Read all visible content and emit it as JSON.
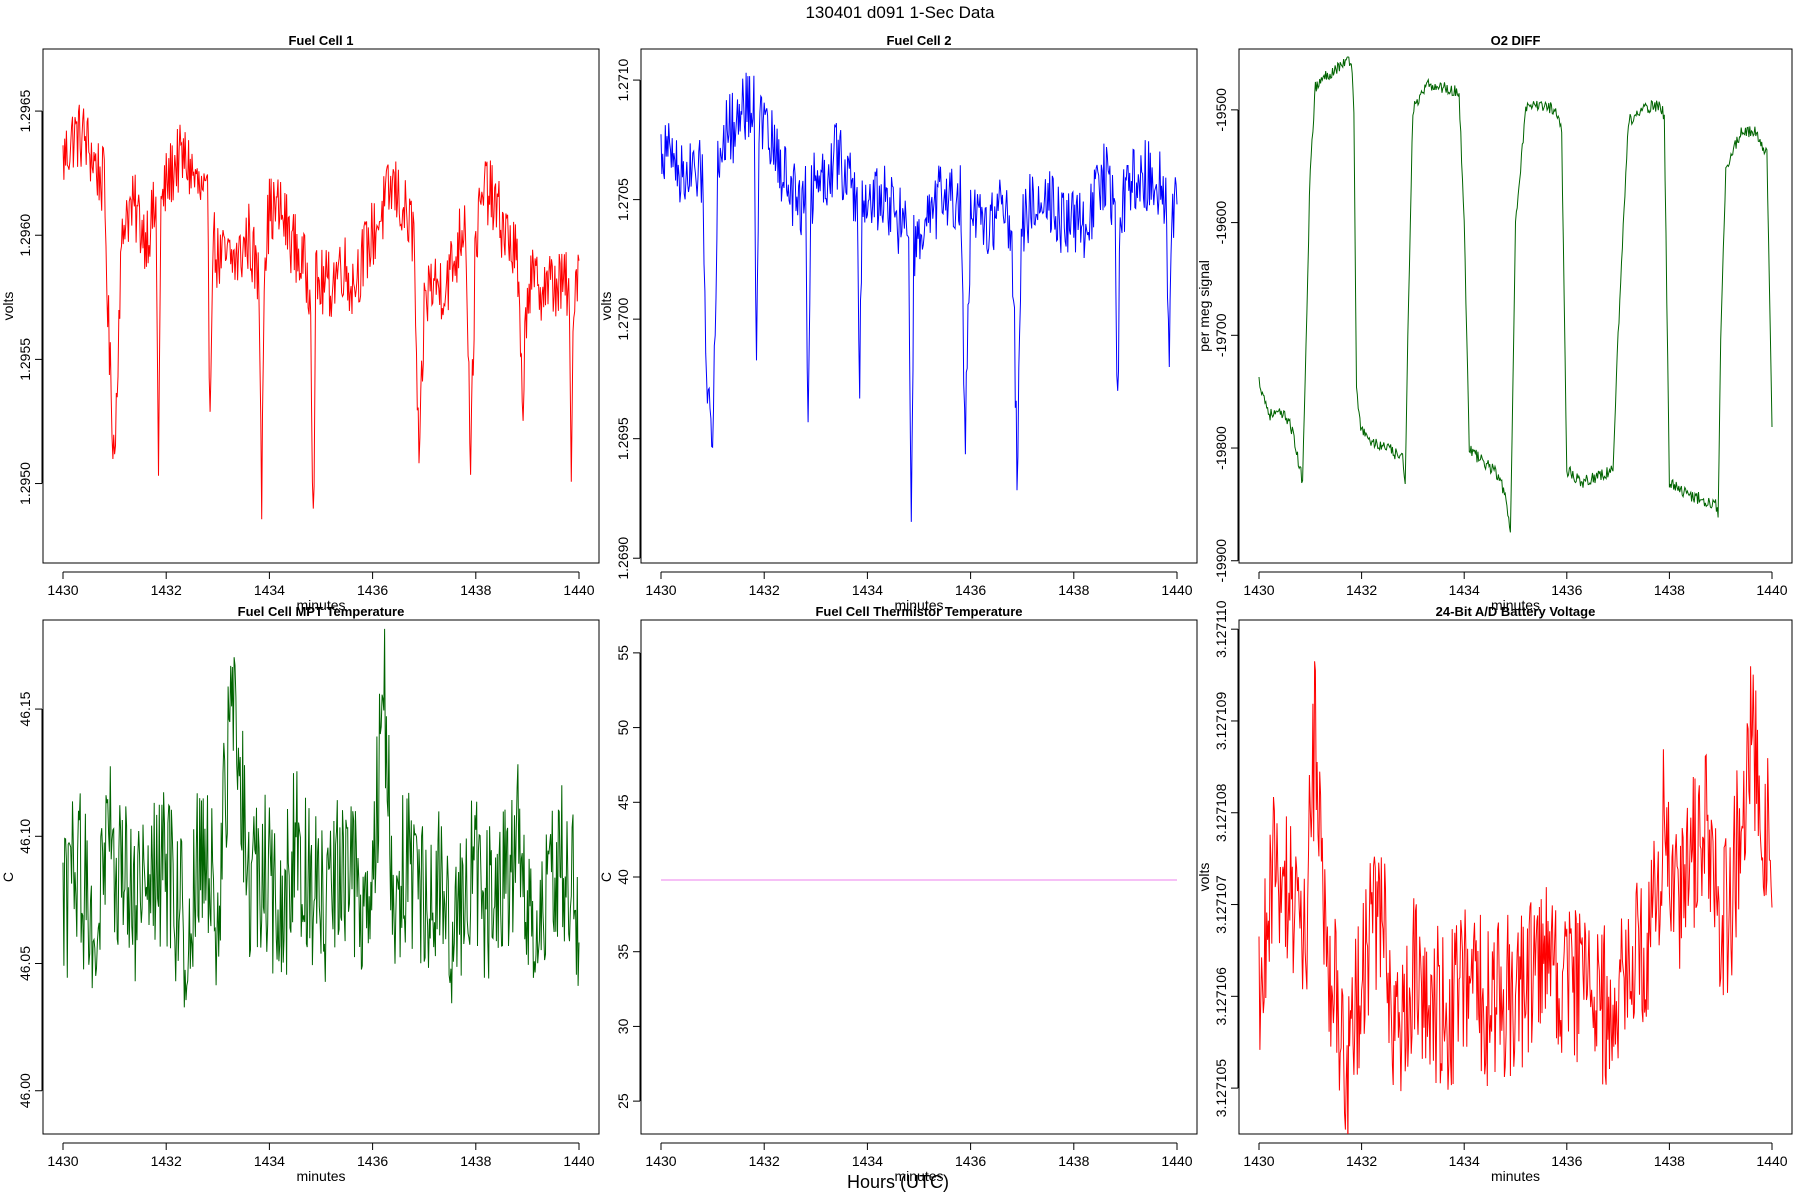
{
  "figure": {
    "suptitle": "130401    d091    1-Sec Data",
    "bottom_label": "Hours (UTC)"
  },
  "chart_data": [
    {
      "type": "line",
      "title": "Fuel Cell 1",
      "xlabel": "minutes",
      "ylabel": "volts",
      "color": "#ff0000",
      "xlim": [
        1430,
        1440
      ],
      "ylim": [
        1.29468,
        1.29675
      ],
      "xticks": [
        1430,
        1432,
        1434,
        1436,
        1438,
        1440
      ],
      "yticks": [
        "1.2950",
        "1.2955",
        "1.2960",
        "1.2965"
      ],
      "yticks_values": [
        1.295,
        1.2955,
        1.296,
        1.2965
      ],
      "series": [
        {
          "name": "Fuel Cell 1",
          "x": [
            1430.0,
            1430.2,
            1430.4,
            1430.6,
            1430.8,
            1430.9,
            1431.0,
            1431.1,
            1431.2,
            1431.4,
            1431.6,
            1431.8,
            1431.85,
            1431.9,
            1432.0,
            1432.2,
            1432.4,
            1432.6,
            1432.8,
            1432.85,
            1432.9,
            1433.0,
            1433.2,
            1433.4,
            1433.6,
            1433.8,
            1433.85,
            1433.9,
            1434.0,
            1434.2,
            1434.4,
            1434.6,
            1434.8,
            1434.85,
            1434.9,
            1435.0,
            1435.2,
            1435.4,
            1435.6,
            1435.8,
            1436.0,
            1436.2,
            1436.4,
            1436.6,
            1436.8,
            1436.9,
            1437.0,
            1437.1,
            1437.2,
            1437.4,
            1437.6,
            1437.8,
            1437.9,
            1438.0,
            1438.2,
            1438.4,
            1438.6,
            1438.8,
            1438.9,
            1439.0,
            1439.2,
            1439.4,
            1439.6,
            1439.8,
            1439.85,
            1439.9,
            1440.0
          ],
          "values": [
            1.2963,
            1.2964,
            1.2964,
            1.2963,
            1.2962,
            1.2955,
            1.2951,
            1.2958,
            1.2961,
            1.2961,
            1.296,
            1.2961,
            1.2951,
            1.2961,
            1.2962,
            1.2963,
            1.2963,
            1.2962,
            1.2961,
            1.2953,
            1.296,
            1.2959,
            1.2959,
            1.2959,
            1.296,
            1.2958,
            1.295,
            1.2959,
            1.2961,
            1.2961,
            1.296,
            1.2959,
            1.2958,
            1.2948,
            1.2958,
            1.2958,
            1.2958,
            1.2959,
            1.2958,
            1.2959,
            1.296,
            1.2961,
            1.2962,
            1.2961,
            1.296,
            1.295,
            1.2957,
            1.2958,
            1.2958,
            1.2958,
            1.2959,
            1.2961,
            1.2951,
            1.296,
            1.2962,
            1.2961,
            1.296,
            1.2959,
            1.2953,
            1.2958,
            1.2958,
            1.2958,
            1.2958,
            1.2958,
            1.295,
            1.2958,
            1.2959
          ]
        }
      ]
    },
    {
      "type": "line",
      "title": "Fuel Cell 2",
      "xlabel": "minutes",
      "ylabel": "volts",
      "color": "#0000ff",
      "xlim": [
        1430,
        1440
      ],
      "ylim": [
        1.26898,
        1.27113
      ],
      "xticks": [
        1430,
        1432,
        1434,
        1436,
        1438,
        1440
      ],
      "yticks": [
        "1.2690",
        "1.2695",
        "1.2700",
        "1.2705",
        "1.2710"
      ],
      "yticks_values": [
        1.269,
        1.2695,
        1.27,
        1.2705,
        1.271
      ],
      "series": [
        {
          "name": "Fuel Cell 2",
          "x": [
            1430.0,
            1430.2,
            1430.4,
            1430.6,
            1430.8,
            1430.9,
            1431.0,
            1431.1,
            1431.2,
            1431.4,
            1431.6,
            1431.8,
            1431.85,
            1431.9,
            1432.0,
            1432.2,
            1432.4,
            1432.6,
            1432.8,
            1432.85,
            1432.9,
            1433.0,
            1433.2,
            1433.4,
            1433.6,
            1433.8,
            1433.85,
            1433.9,
            1434.0,
            1434.2,
            1434.4,
            1434.6,
            1434.8,
            1434.85,
            1434.9,
            1435.0,
            1435.2,
            1435.4,
            1435.6,
            1435.8,
            1435.9,
            1436.0,
            1436.2,
            1436.4,
            1436.6,
            1436.8,
            1436.9,
            1437.0,
            1437.2,
            1437.4,
            1437.6,
            1437.8,
            1438.0,
            1438.2,
            1438.4,
            1438.6,
            1438.8,
            1438.85,
            1438.9,
            1439.0,
            1439.2,
            1439.4,
            1439.6,
            1439.8,
            1439.85,
            1439.9,
            1440.0
          ],
          "values": [
            1.2707,
            1.2707,
            1.2706,
            1.2706,
            1.2706,
            1.2697,
            1.2695,
            1.2706,
            1.2708,
            1.2708,
            1.2709,
            1.2709,
            1.2699,
            1.2708,
            1.2708,
            1.2707,
            1.2706,
            1.2705,
            1.2705,
            1.2696,
            1.2705,
            1.2706,
            1.2706,
            1.2707,
            1.2706,
            1.2705,
            1.2697,
            1.2705,
            1.2705,
            1.2705,
            1.2705,
            1.2704,
            1.2704,
            1.2691,
            1.2703,
            1.2703,
            1.2704,
            1.2705,
            1.2705,
            1.2705,
            1.2695,
            1.2704,
            1.2704,
            1.2704,
            1.2705,
            1.2704,
            1.2694,
            1.2704,
            1.2705,
            1.2705,
            1.2705,
            1.2704,
            1.2704,
            1.2704,
            1.2705,
            1.2706,
            1.2705,
            1.2696,
            1.2705,
            1.2705,
            1.2706,
            1.2706,
            1.2706,
            1.2705,
            1.2697,
            1.2704,
            1.2705
          ]
        }
      ]
    },
    {
      "type": "line",
      "title": "O2 DIFF",
      "xlabel": "minutes",
      "ylabel": "per meg signal",
      "color": "#006400",
      "xlim": [
        1430,
        1440
      ],
      "ylim": [
        -19902,
        -19446
      ],
      "xticks": [
        1430,
        1432,
        1434,
        1436,
        1438,
        1440
      ],
      "yticks": [
        "-19900",
        "-19800",
        "-19700",
        "-19600",
        "-19500"
      ],
      "yticks_values": [
        -19900,
        -19800,
        -19700,
        -19600,
        -19500
      ],
      "series": [
        {
          "name": "O2 DIFF",
          "x": [
            1430.0,
            1430.2,
            1430.4,
            1430.6,
            1430.85,
            1430.92,
            1431.0,
            1431.1,
            1431.3,
            1431.6,
            1431.8,
            1431.85,
            1431.9,
            1432.0,
            1432.2,
            1432.5,
            1432.8,
            1432.85,
            1432.9,
            1433.0,
            1433.3,
            1433.6,
            1433.9,
            1434.0,
            1434.1,
            1434.3,
            1434.6,
            1434.8,
            1434.9,
            1435.0,
            1435.2,
            1435.5,
            1435.8,
            1435.9,
            1436.0,
            1436.3,
            1436.6,
            1436.9,
            1437.0,
            1437.2,
            1437.5,
            1437.8,
            1437.9,
            1438.0,
            1438.3,
            1438.6,
            1438.9,
            1438.95,
            1439.0,
            1439.1,
            1439.4,
            1439.7,
            1439.9,
            1440.0
          ],
          "values": [
            -19740,
            -19770,
            -19770,
            -19775,
            -19830,
            -19700,
            -19550,
            -19480,
            -19470,
            -19460,
            -19455,
            -19500,
            -19750,
            -19785,
            -19795,
            -19800,
            -19810,
            -19830,
            -19700,
            -19500,
            -19478,
            -19480,
            -19485,
            -19600,
            -19800,
            -19810,
            -19820,
            -19840,
            -19880,
            -19600,
            -19500,
            -19495,
            -19500,
            -19520,
            -19820,
            -19830,
            -19825,
            -19820,
            -19700,
            -19510,
            -19500,
            -19495,
            -19505,
            -19830,
            -19840,
            -19845,
            -19850,
            -19860,
            -19700,
            -19550,
            -19520,
            -19520,
            -19540,
            -19780
          ]
        }
      ]
    },
    {
      "type": "line",
      "title": "Fuel Cell MPT Temperature",
      "xlabel": "minutes",
      "ylabel": "C",
      "color": "#006400",
      "xlim": [
        1430,
        1440
      ],
      "ylim": [
        45.983,
        46.185
      ],
      "xticks": [
        1430,
        1432,
        1434,
        1436,
        1438,
        1440
      ],
      "yticks": [
        "46.00",
        "46.05",
        "46.10",
        "46.15"
      ],
      "yticks_values": [
        46.0,
        46.05,
        46.1,
        46.15
      ],
      "series": [
        {
          "name": "Fuel Cell MPT Temperature",
          "x": [
            1430.0,
            1430.3,
            1430.6,
            1430.9,
            1431.2,
            1431.5,
            1431.8,
            1432.1,
            1432.4,
            1432.7,
            1433.0,
            1433.3,
            1433.6,
            1433.9,
            1434.2,
            1434.5,
            1434.8,
            1435.1,
            1435.4,
            1435.7,
            1436.0,
            1436.2,
            1436.4,
            1436.7,
            1437.0,
            1437.3,
            1437.6,
            1437.9,
            1438.2,
            1438.5,
            1438.8,
            1439.1,
            1439.4,
            1439.7,
            1440.0
          ],
          "values": [
            46.07,
            46.09,
            46.06,
            46.1,
            46.08,
            46.07,
            46.09,
            46.08,
            46.06,
            46.1,
            46.07,
            46.16,
            46.08,
            46.09,
            46.06,
            46.1,
            46.08,
            46.07,
            46.09,
            46.08,
            46.07,
            46.17,
            46.08,
            46.09,
            46.07,
            46.08,
            46.06,
            46.09,
            46.07,
            46.08,
            46.1,
            46.07,
            46.08,
            46.09,
            46.07
          ]
        }
      ]
    },
    {
      "type": "line",
      "title": "Fuel Cell Thermistor Temperature",
      "xlabel": "minutes",
      "ylabel": "C",
      "color": "#ee82ee",
      "xlim": [
        1430,
        1440
      ],
      "ylim": [
        22.8,
        57.2
      ],
      "xticks": [
        1430,
        1432,
        1434,
        1436,
        1438,
        1440
      ],
      "yticks": [
        "25",
        "30",
        "35",
        "40",
        "45",
        "50",
        "55"
      ],
      "yticks_values": [
        25,
        30,
        35,
        40,
        45,
        50,
        55
      ],
      "series": [
        {
          "name": "Fuel Cell Thermistor Temperature",
          "x": [
            1430,
            1440
          ],
          "values": [
            39.8,
            39.8
          ]
        }
      ]
    },
    {
      "type": "line",
      "title": "24-Bit A/D Battery Voltage",
      "xlabel": "minutes",
      "ylabel": "volts",
      "color": "#ff0000",
      "xlim": [
        1430,
        1440
      ],
      "ylim": [
        3.1271045,
        3.1271101
      ],
      "xticks": [
        1430,
        1432,
        1434,
        1436,
        1438,
        1440
      ],
      "yticks": [
        "3.127105",
        "3.127106",
        "3.127107",
        "3.127108",
        "3.127109",
        "3.127110"
      ],
      "yticks_values": [
        3.127105,
        3.127106,
        3.127107,
        3.127108,
        3.127109,
        3.12711
      ],
      "series": [
        {
          "name": "24-Bit A/D Battery Voltage",
          "x": [
            1430.0,
            1430.3,
            1430.6,
            1430.9,
            1431.1,
            1431.3,
            1431.5,
            1431.7,
            1431.9,
            1432.1,
            1432.4,
            1432.7,
            1433.0,
            1433.3,
            1433.6,
            1433.9,
            1434.2,
            1434.5,
            1434.8,
            1435.1,
            1435.4,
            1435.7,
            1436.0,
            1436.3,
            1436.6,
            1436.9,
            1437.2,
            1437.5,
            1437.7,
            1437.9,
            1438.1,
            1438.4,
            1438.7,
            1439.0,
            1439.2,
            1439.4,
            1439.6,
            1439.8,
            1440.0
          ],
          "values": [
            3.127106,
            3.1271075,
            3.127107,
            3.1271065,
            3.127109,
            3.1271065,
            3.127106,
            3.127105,
            3.1271058,
            3.1271065,
            3.1271068,
            3.1271055,
            3.1271062,
            3.127106,
            3.1271058,
            3.127106,
            3.1271062,
            3.1271058,
            3.127106,
            3.127106,
            3.1271065,
            3.1271062,
            3.127106,
            3.1271062,
            3.1271058,
            3.127106,
            3.1271062,
            3.1271065,
            3.1271068,
            3.127108,
            3.127107,
            3.1271075,
            3.127108,
            3.1271068,
            3.127107,
            3.127108,
            3.127109,
            3.127108,
            3.1271075
          ]
        }
      ]
    }
  ]
}
